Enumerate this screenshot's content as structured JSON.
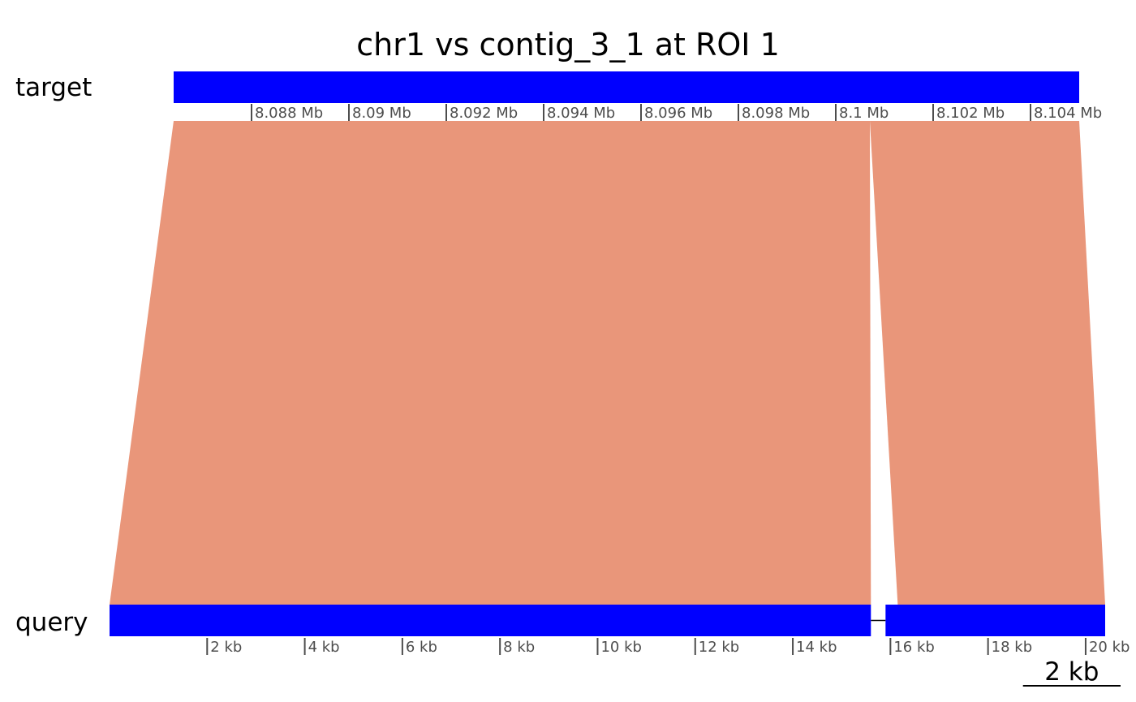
{
  "title": "chr1 vs contig_3_1 at ROI 1",
  "tracks": {
    "target_label": "target",
    "query_label": "query"
  },
  "colors": {
    "track_fill": "#0000ff",
    "alignment_fill": "#e9967a",
    "tick_color": "#4d4d4d",
    "text_color": "#000000"
  },
  "chart_data": {
    "type": "synteny",
    "target": {
      "name": "target",
      "unit": "Mb",
      "range_mb": [
        8.0864,
        8.105
      ],
      "blocks_mb": [
        [
          8.0864,
          8.105
        ]
      ],
      "ticks_mb": [
        8.088,
        8.09,
        8.092,
        8.094,
        8.096,
        8.098,
        8.1,
        8.102,
        8.104
      ],
      "tick_labels": [
        "8.088 Mb",
        "8.09 Mb",
        "8.092 Mb",
        "8.094 Mb",
        "8.096 Mb",
        "8.098 Mb",
        "8.1 Mb",
        "8.102 Mb",
        "8.104 Mb"
      ]
    },
    "query": {
      "name": "query",
      "unit": "kb",
      "range_kb": [
        0.0,
        20.4
      ],
      "blocks_kb": [
        [
          0.0,
          15.6
        ],
        [
          15.9,
          20.4
        ]
      ],
      "ticks_kb": [
        2,
        4,
        6,
        8,
        10,
        12,
        14,
        16,
        18,
        20
      ],
      "tick_labels": [
        "2 kb",
        "4 kb",
        "6 kb",
        "8 kb",
        "10 kb",
        "12 kb",
        "14 kb",
        "16 kb",
        "18 kb",
        "20 kb"
      ]
    },
    "alignments": [
      {
        "target_mb": [
          8.0864,
          8.1007
        ],
        "query_kb": [
          0.0,
          15.6
        ]
      },
      {
        "target_mb": [
          8.1007,
          8.105
        ],
        "query_kb": [
          16.15,
          20.4
        ]
      }
    ],
    "scale_bar": {
      "length_kb": 2,
      "label": "2 kb"
    }
  }
}
